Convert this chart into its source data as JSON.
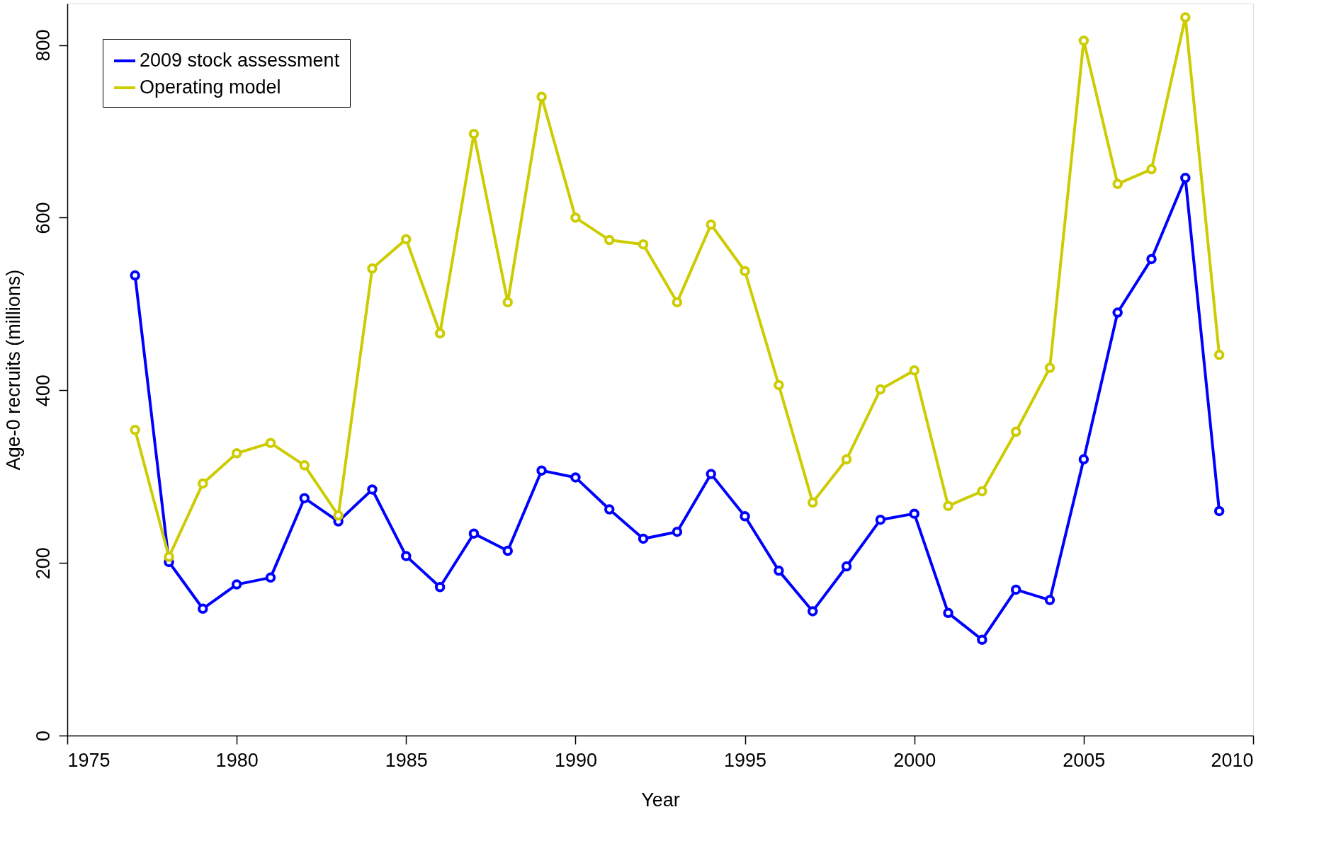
{
  "chart_data": {
    "type": "line",
    "xlabel": "Year",
    "ylabel": "Age-0 recruits (millions)",
    "x": [
      1977,
      1978,
      1979,
      1980,
      1981,
      1982,
      1983,
      1984,
      1985,
      1986,
      1987,
      1988,
      1989,
      1990,
      1991,
      1992,
      1993,
      1994,
      1995,
      1996,
      1997,
      1998,
      1999,
      2000,
      2001,
      2002,
      2003,
      2004,
      2005,
      2006,
      2007,
      2008,
      2009
    ],
    "series": [
      {
        "name": "2009 stock assessment",
        "color": "#0000ff",
        "values": [
          533,
          201,
          147,
          175,
          183,
          275,
          248,
          285,
          208,
          172,
          234,
          214,
          307,
          299,
          262,
          228,
          236,
          303,
          254,
          191,
          144,
          196,
          250,
          257,
          142,
          111,
          169,
          157,
          320,
          490,
          552,
          646,
          260
        ]
      },
      {
        "name": "Operating model",
        "color": "#cccc00",
        "values": [
          354,
          207,
          292,
          327,
          339,
          313,
          255,
          541,
          575,
          466,
          697,
          502,
          740,
          600,
          574,
          569,
          502,
          592,
          538,
          406,
          270,
          320,
          401,
          423,
          266,
          283,
          352,
          426,
          805,
          639,
          656,
          832,
          441
        ]
      }
    ],
    "xlim": [
      1975,
      2010
    ],
    "xticks": [
      1975,
      1980,
      1985,
      1990,
      1995,
      2000,
      2005,
      2010
    ],
    "ylim": [
      0,
      848
    ],
    "yticks": [
      0,
      200,
      400,
      600,
      800
    ],
    "grid": false,
    "legend": "top left",
    "marker": "circle",
    "line_style": "solid"
  }
}
